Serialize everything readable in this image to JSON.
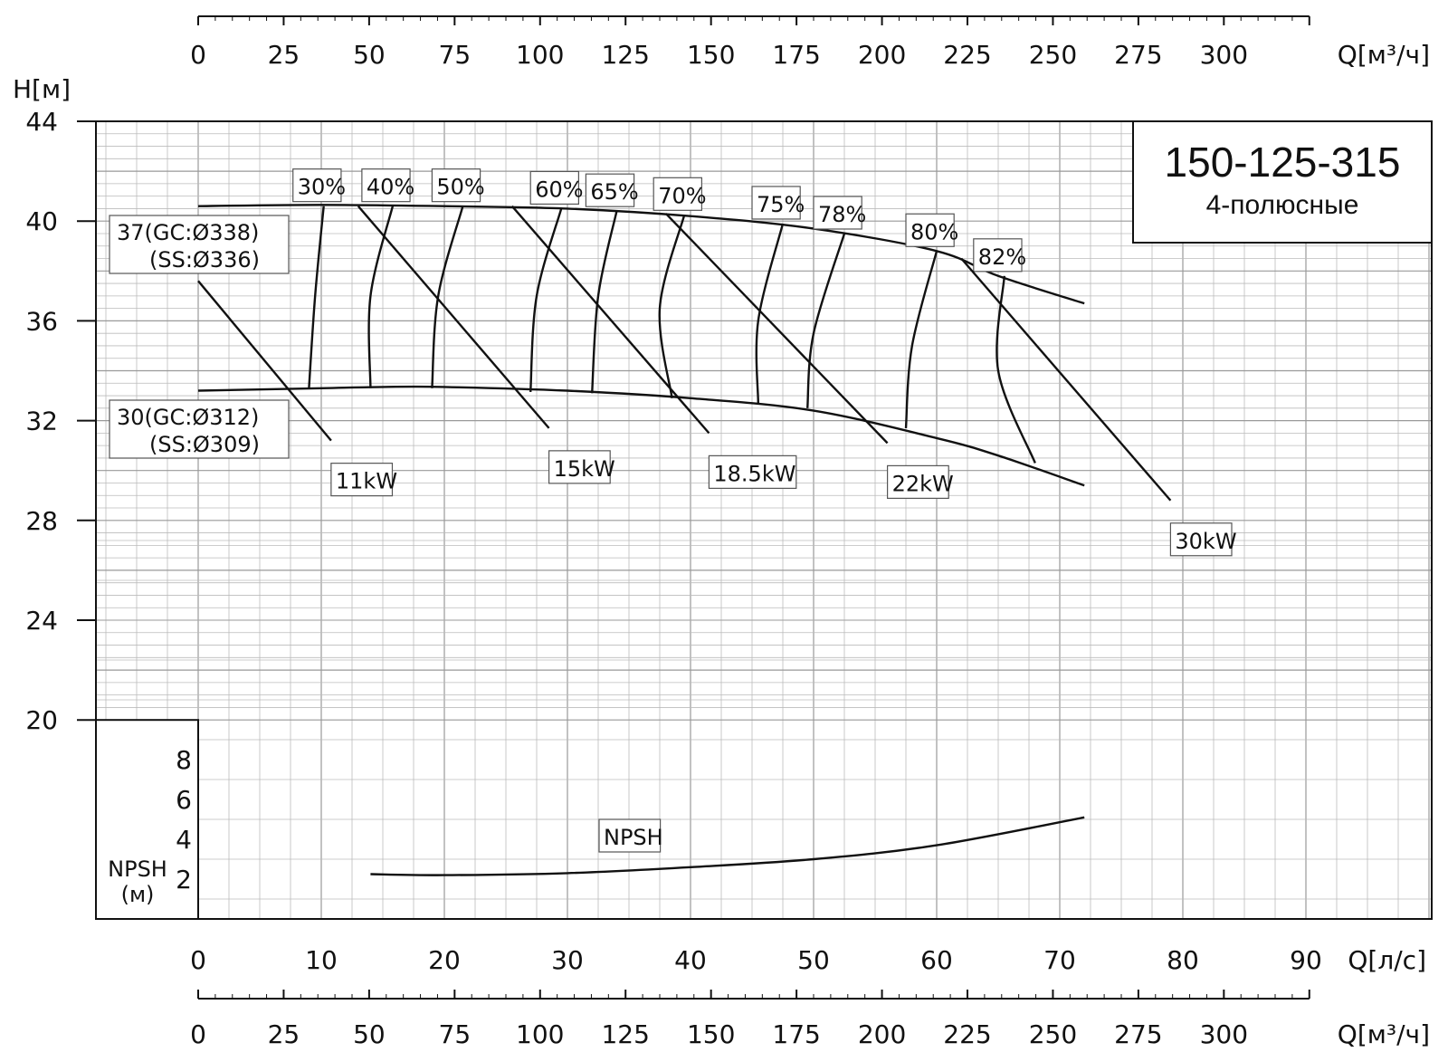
{
  "chart_data": {
    "type": "line",
    "title": "150-125-315",
    "subtitle": "4-полюсные",
    "y_axis": {
      "label": "H[м]",
      "ylim": [
        20,
        44
      ],
      "ticks": [
        "20",
        "24",
        "28",
        "32",
        "36",
        "40",
        "44"
      ]
    },
    "x_axis_ls": {
      "label": "Q[л/с]",
      "xlim": [
        0,
        100
      ],
      "ticks": [
        "0",
        "10",
        "20",
        "30",
        "40",
        "50",
        "60",
        "70",
        "80",
        "90"
      ]
    },
    "x_axis_m3h": {
      "label": "Q[м³/ч]",
      "ticks": [
        "0",
        "25",
        "50",
        "75",
        "100",
        "125",
        "150",
        "175",
        "200",
        "225",
        "250",
        "275",
        "300"
      ]
    },
    "npsh_axis": {
      "label": "NPSH",
      "unit": "(м)",
      "ticks": [
        "2",
        "4",
        "6",
        "8"
      ],
      "ylim": [
        0,
        10
      ]
    },
    "impeller_curves": [
      {
        "name": "37",
        "labels": [
          "37(GC:Ø338)",
          "(SS:Ø336)"
        ],
        "x": [
          0,
          10,
          20,
          30,
          40,
          50,
          60,
          65,
          72
        ],
        "y": [
          40.6,
          40.65,
          40.6,
          40.5,
          40.2,
          39.7,
          38.8,
          37.8,
          36.7
        ]
      },
      {
        "name": "30",
        "labels": [
          "30(GC:Ø312)",
          "(SS:Ø309)"
        ],
        "x": [
          0,
          10,
          15,
          20,
          30,
          40,
          50,
          60,
          65,
          72
        ],
        "y": [
          33.2,
          33.3,
          33.35,
          33.35,
          33.2,
          32.9,
          32.4,
          31.3,
          30.6,
          29.4
        ]
      }
    ],
    "efficiency_curves": [
      {
        "label": "30%",
        "x": [
          10.2,
          9.5,
          9.0
        ],
        "y": [
          40.6,
          37.0,
          33.3
        ]
      },
      {
        "label": "40%",
        "x": [
          15.8,
          14.0,
          14.0
        ],
        "y": [
          40.6,
          37.0,
          33.3
        ]
      },
      {
        "label": "50%",
        "x": [
          21.5,
          19.5,
          19.0
        ],
        "y": [
          40.6,
          37.0,
          33.3
        ]
      },
      {
        "label": "60%",
        "x": [
          29.5,
          27.5,
          27.0
        ],
        "y": [
          40.5,
          37.0,
          33.15
        ]
      },
      {
        "label": "65%",
        "x": [
          34.0,
          32.5,
          32.0
        ],
        "y": [
          40.4,
          37.0,
          33.1
        ]
      },
      {
        "label": "70%",
        "x": [
          39.5,
          37.5,
          38.5
        ],
        "y": [
          40.25,
          36.5,
          32.9
        ]
      },
      {
        "label": "75%",
        "x": [
          47.5,
          45.5,
          45.5
        ],
        "y": [
          39.9,
          36.0,
          32.7
        ]
      },
      {
        "label": "78%",
        "x": [
          52.5,
          50.0,
          49.5
        ],
        "y": [
          39.5,
          35.5,
          32.5
        ]
      },
      {
        "label": "80%",
        "x": [
          60.0,
          58.0,
          57.5
        ],
        "y": [
          38.8,
          35.0,
          31.7
        ]
      },
      {
        "label": "82%",
        "x": [
          65.5,
          65.0,
          68.0
        ],
        "y": [
          37.8,
          34.0,
          30.3
        ]
      }
    ],
    "power_lines": [
      {
        "label": "11kW",
        "x": [
          0,
          10.8
        ],
        "y": [
          37.6,
          31.2
        ]
      },
      {
        "label": "15kW",
        "x": [
          13.0,
          28.5
        ],
        "y": [
          40.6,
          31.7
        ]
      },
      {
        "label": "18.5kW",
        "x": [
          25.5,
          41.5
        ],
        "y": [
          40.6,
          31.5
        ]
      },
      {
        "label": "22kW",
        "x": [
          38.0,
          56.0
        ],
        "y": [
          40.3,
          31.1
        ]
      },
      {
        "label": "30kW",
        "x": [
          62.0,
          79.0
        ],
        "y": [
          38.5,
          28.8
        ]
      }
    ],
    "npsh_curve": {
      "label": "NPSH",
      "x": [
        14,
        20,
        30,
        40,
        50,
        60,
        72
      ],
      "y": [
        2.25,
        2.2,
        2.3,
        2.6,
        3.0,
        3.7,
        5.1
      ]
    }
  }
}
